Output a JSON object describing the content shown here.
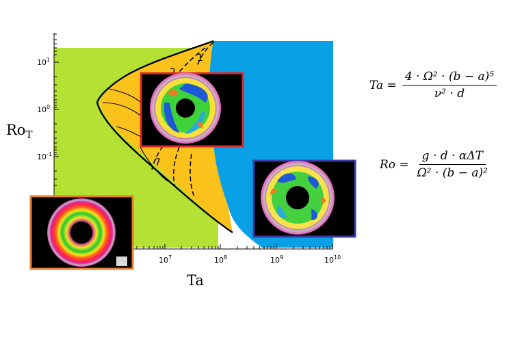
{
  "axes": {
    "xlabel": "Ta",
    "ylabel_main": "Ro",
    "ylabel_sub": "T",
    "x_ticks": [
      {
        "base": "10",
        "exp": "7"
      },
      {
        "base": "10",
        "exp": "8"
      },
      {
        "base": "10",
        "exp": "9"
      },
      {
        "base": "10",
        "exp": "10"
      }
    ],
    "y_ticks": [
      {
        "base": "10",
        "exp": "1"
      },
      {
        "base": "10",
        "exp": "0"
      },
      {
        "base": "10",
        "exp": "-1"
      }
    ]
  },
  "regions": {
    "colors": {
      "axisymmetric": "#b5e034",
      "wave": "#fcc21c",
      "irregular": "#0aa0e6"
    },
    "labels": [
      "1",
      "2",
      "7"
    ]
  },
  "equations": {
    "ta": {
      "lhs": "Ta =",
      "num": "4 · Ω² · (b − a)⁵",
      "den": "ν² · d"
    },
    "ro": {
      "lhs": "Ro =",
      "num": "g · d · αΔT",
      "den": "Ω² · (b − a)²"
    }
  },
  "thumbnails": [
    {
      "name": "thumb-axisymmetric",
      "frame_color": "#e87c2e"
    },
    {
      "name": "thumb-regular-wave",
      "frame_color": "#e0282a"
    },
    {
      "name": "thumb-irregular",
      "frame_color": "#3a3aa8"
    }
  ]
}
